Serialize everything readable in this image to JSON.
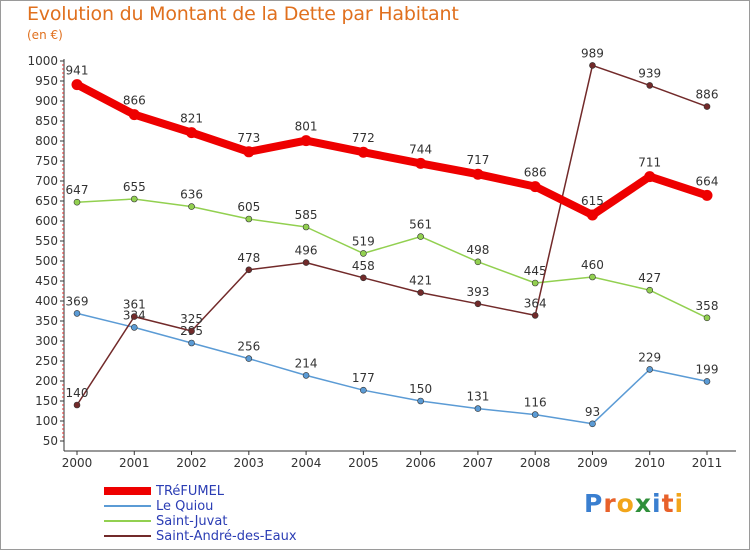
{
  "title": "Evolution du Montant de la Dette par Habitant",
  "unit": "(en €)",
  "logo": {
    "text": "Proxiti",
    "letter_colors": [
      "#3a7fd0",
      "#e8612a",
      "#f2a51a",
      "#2f8f3a",
      "#3a7fd0",
      "#e8612a",
      "#f2a51a"
    ]
  },
  "chart_data": {
    "type": "line",
    "x": [
      "2000",
      "2001",
      "2002",
      "2003",
      "2004",
      "2005",
      "2006",
      "2007",
      "2008",
      "2009",
      "2010",
      "2011"
    ],
    "ylim": [
      50,
      1000
    ],
    "yticks": [
      50,
      100,
      150,
      200,
      250,
      300,
      350,
      400,
      450,
      500,
      550,
      600,
      650,
      700,
      750,
      800,
      850,
      900,
      950,
      1000
    ],
    "grid": false,
    "legend_position": "bottom-left",
    "series": [
      {
        "name": "TRéFUMEL",
        "color": "#ee0000",
        "values": [
          941,
          866,
          821,
          773,
          801,
          772,
          744,
          717,
          686,
          615,
          711,
          664
        ]
      },
      {
        "name": "Le Quiou",
        "color": "#5b9bd5",
        "values": [
          369,
          334,
          295,
          256,
          214,
          177,
          150,
          131,
          116,
          93,
          229,
          199
        ]
      },
      {
        "name": "Saint-Juvat",
        "color": "#92d050",
        "values": [
          647,
          655,
          636,
          605,
          585,
          519,
          561,
          498,
          445,
          460,
          427,
          358
        ]
      },
      {
        "name": "Saint-André-des-Eaux",
        "color": "#722a2a",
        "values": [
          140,
          361,
          325,
          478,
          496,
          458,
          421,
          393,
          364,
          989,
          939,
          886
        ]
      }
    ]
  }
}
